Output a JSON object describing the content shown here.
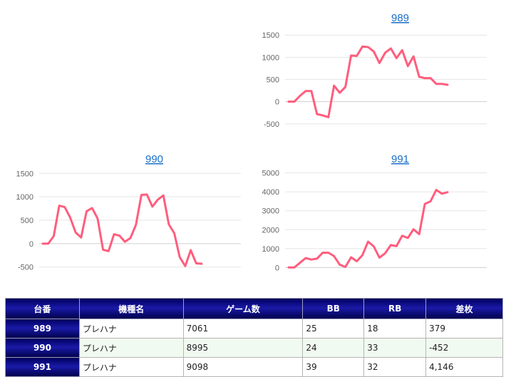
{
  "chart_data": [
    {
      "type": "line",
      "title": "989",
      "ylim": [
        -600,
        1600
      ],
      "yticks": [
        -500,
        0,
        500,
        1000,
        1500
      ],
      "grid": true,
      "color": "#ff5d7d",
      "values": [
        0,
        0,
        130,
        240,
        240,
        -280,
        -310,
        -350,
        360,
        200,
        330,
        1040,
        1030,
        1240,
        1230,
        1130,
        870,
        1100,
        1200,
        980,
        1160,
        800,
        1020,
        560,
        530,
        530,
        400,
        400,
        380
      ]
    },
    {
      "type": "line",
      "title": "990",
      "ylim": [
        -550,
        1550
      ],
      "yticks": [
        -500,
        0,
        500,
        1000,
        1500
      ],
      "grid": true,
      "color": "#ff5d7d",
      "values": [
        0,
        0,
        160,
        810,
        780,
        560,
        240,
        130,
        690,
        760,
        540,
        -130,
        -160,
        200,
        170,
        40,
        120,
        400,
        1040,
        1050,
        790,
        940,
        1030,
        410,
        220,
        -290,
        -480,
        -140,
        -420,
        -430
      ]
    },
    {
      "type": "line",
      "title": "991",
      "ylim": [
        -100,
        5100
      ],
      "yticks": [
        0,
        1000,
        2000,
        3000,
        4000,
        5000
      ],
      "grid": true,
      "color": "#ff5d7d",
      "values": [
        0,
        0,
        250,
        500,
        420,
        470,
        780,
        780,
        600,
        150,
        30,
        540,
        330,
        650,
        1370,
        1110,
        520,
        750,
        1190,
        1130,
        1680,
        1560,
        2020,
        1760,
        3360,
        3500,
        4100,
        3900,
        3980
      ]
    }
  ],
  "table": {
    "headers": [
      "台番",
      "機種名",
      "ゲーム数",
      "BB",
      "RB",
      "差枚"
    ],
    "rows": [
      {
        "id": "989",
        "name": "プレハナ",
        "games": "7061",
        "bb": "25",
        "rb": "18",
        "diff": "379"
      },
      {
        "id": "990",
        "name": "プレハナ",
        "games": "8995",
        "bb": "24",
        "rb": "33",
        "diff": "-452"
      },
      {
        "id": "991",
        "name": "プレハナ",
        "games": "9098",
        "bb": "39",
        "rb": "32",
        "diff": "4,146"
      }
    ]
  }
}
